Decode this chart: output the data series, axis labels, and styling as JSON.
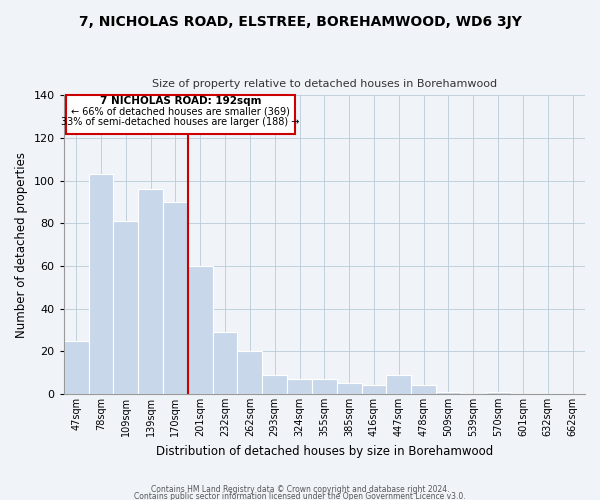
{
  "title": "7, NICHOLAS ROAD, ELSTREE, BOREHAMWOOD, WD6 3JY",
  "subtitle": "Size of property relative to detached houses in Borehamwood",
  "xlabel": "Distribution of detached houses by size in Borehamwood",
  "ylabel": "Number of detached properties",
  "bar_color": "#c8d8ea",
  "bar_edge_color": "#ffffff",
  "categories": [
    "47sqm",
    "78sqm",
    "109sqm",
    "139sqm",
    "170sqm",
    "201sqm",
    "232sqm",
    "262sqm",
    "293sqm",
    "324sqm",
    "355sqm",
    "385sqm",
    "416sqm",
    "447sqm",
    "478sqm",
    "509sqm",
    "539sqm",
    "570sqm",
    "601sqm",
    "632sqm",
    "662sqm"
  ],
  "values": [
    25,
    103,
    81,
    96,
    90,
    60,
    29,
    20,
    9,
    7,
    7,
    5,
    4,
    9,
    4,
    1,
    0,
    1,
    0,
    0,
    0
  ],
  "ylim": [
    0,
    140
  ],
  "yticks": [
    0,
    20,
    40,
    60,
    80,
    100,
    120,
    140
  ],
  "marker_color": "#cc0000",
  "annotation_line1": "7 NICHOLAS ROAD: 192sqm",
  "annotation_line2": "← 66% of detached houses are smaller (369)",
  "annotation_line3": "33% of semi-detached houses are larger (188) →",
  "footer1": "Contains HM Land Registry data © Crown copyright and database right 2024.",
  "footer2": "Contains public sector information licensed under the Open Government Licence v3.0.",
  "background_color": "#f0f4f8"
}
